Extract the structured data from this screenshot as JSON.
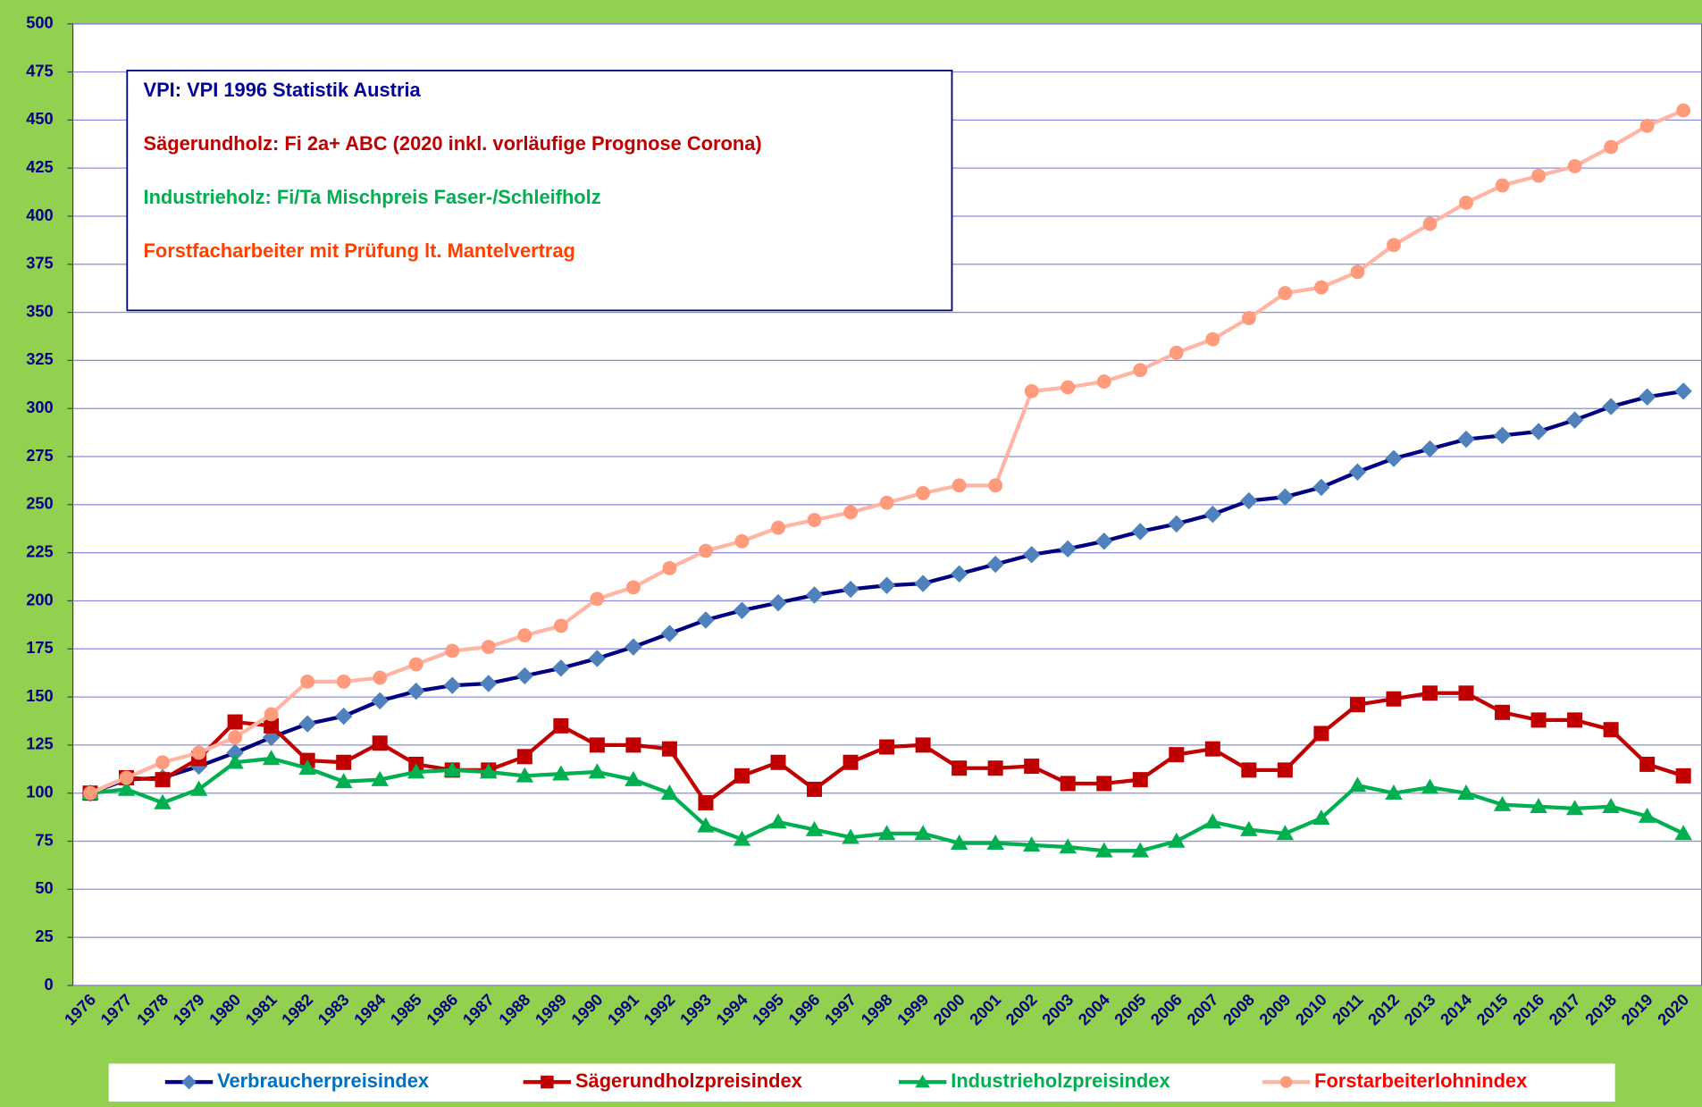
{
  "chart_data": {
    "type": "line",
    "categories": [
      "1976",
      "1977",
      "1978",
      "1979",
      "1980",
      "1981",
      "1982",
      "1983",
      "1984",
      "1985",
      "1986",
      "1987",
      "1988",
      "1989",
      "1990",
      "1991",
      "1992",
      "1993",
      "1994",
      "1995",
      "1996",
      "1997",
      "1998",
      "1999",
      "2000",
      "2001",
      "2002",
      "2003",
      "2004",
      "2005",
      "2006",
      "2007",
      "2008",
      "2009",
      "2010",
      "2011",
      "2012",
      "2013",
      "2014",
      "2015",
      "2016",
      "2017",
      "2018",
      "2019",
      "2020"
    ],
    "ylim": [
      0,
      500
    ],
    "yticks": [
      0,
      25,
      50,
      75,
      100,
      125,
      150,
      175,
      200,
      225,
      250,
      275,
      300,
      325,
      350,
      375,
      400,
      425,
      450,
      475,
      500
    ],
    "grid": true,
    "legend": "bottom",
    "annotations": [
      {
        "text": "VPI: VPI 1996 Statistik Austria",
        "color": "#000099"
      },
      {
        "text": "Sägerundholz: Fi 2a+ ABC (2020 inkl. vorläufige Prognose Corona)",
        "color": "#c00000"
      },
      {
        "text": "Industrieholz: Fi/Ta Mischpreis Faser-/Schleifholz",
        "color": "#00b050"
      },
      {
        "text": "Forstfacharbeiter mit Prüfung lt. Mantelvertrag",
        "color": "#ff4000"
      }
    ],
    "series": [
      {
        "name": "Verbraucherpreisindex",
        "color": "#000080",
        "marker": "diamond",
        "marker_color": "#4f81bd",
        "label_color": "#0070c0",
        "values": [
          100,
          107,
          108,
          114,
          121,
          129,
          136,
          140,
          148,
          153,
          156,
          157,
          161,
          165,
          170,
          176,
          183,
          190,
          195,
          199,
          203,
          206,
          208,
          209,
          214,
          219,
          224,
          227,
          231,
          236,
          240,
          245,
          252,
          254,
          259,
          267,
          274,
          279,
          284,
          286,
          288,
          294,
          301,
          306,
          309
        ]
      },
      {
        "name": "Sägerundholzpreisindex",
        "color": "#c00000",
        "marker": "square",
        "marker_color": "#c00000",
        "label_color": "#c00000",
        "values": [
          100,
          108,
          107,
          118,
          137,
          135,
          117,
          116,
          126,
          115,
          112,
          112,
          119,
          135,
          125,
          125,
          123,
          95,
          109,
          116,
          102,
          116,
          124,
          125,
          113,
          113,
          114,
          105,
          105,
          107,
          120,
          123,
          112,
          112,
          131,
          146,
          149,
          152,
          152,
          142,
          138,
          138,
          133,
          115,
          109
        ]
      },
      {
        "name": "Industrieholzpreisindex",
        "color": "#00b050",
        "marker": "triangle",
        "marker_color": "#00b050",
        "label_color": "#00b050",
        "values": [
          100,
          102,
          95,
          102,
          116,
          118,
          113,
          106,
          107,
          111,
          112,
          111,
          109,
          110,
          111,
          107,
          100,
          83,
          76,
          85,
          81,
          77,
          79,
          79,
          74,
          74,
          73,
          72,
          70,
          70,
          75,
          85,
          81,
          79,
          87,
          104,
          100,
          103,
          100,
          94,
          93,
          92,
          93,
          88,
          79
        ]
      },
      {
        "name": "Forstarbeiterlohnindex",
        "color": "#ffb4a4",
        "marker": "circle",
        "marker_color": "#ff9a7a",
        "label_color": "#ff0000",
        "values": [
          100,
          108,
          116,
          121,
          129,
          141,
          158,
          158,
          160,
          167,
          174,
          176,
          182,
          187,
          201,
          207,
          217,
          226,
          231,
          238,
          242,
          246,
          251,
          256,
          260,
          260,
          309,
          311,
          314,
          320,
          329,
          336,
          347,
          360,
          363,
          371,
          385,
          396,
          407,
          416,
          421,
          426,
          436,
          447,
          455
        ]
      }
    ]
  }
}
